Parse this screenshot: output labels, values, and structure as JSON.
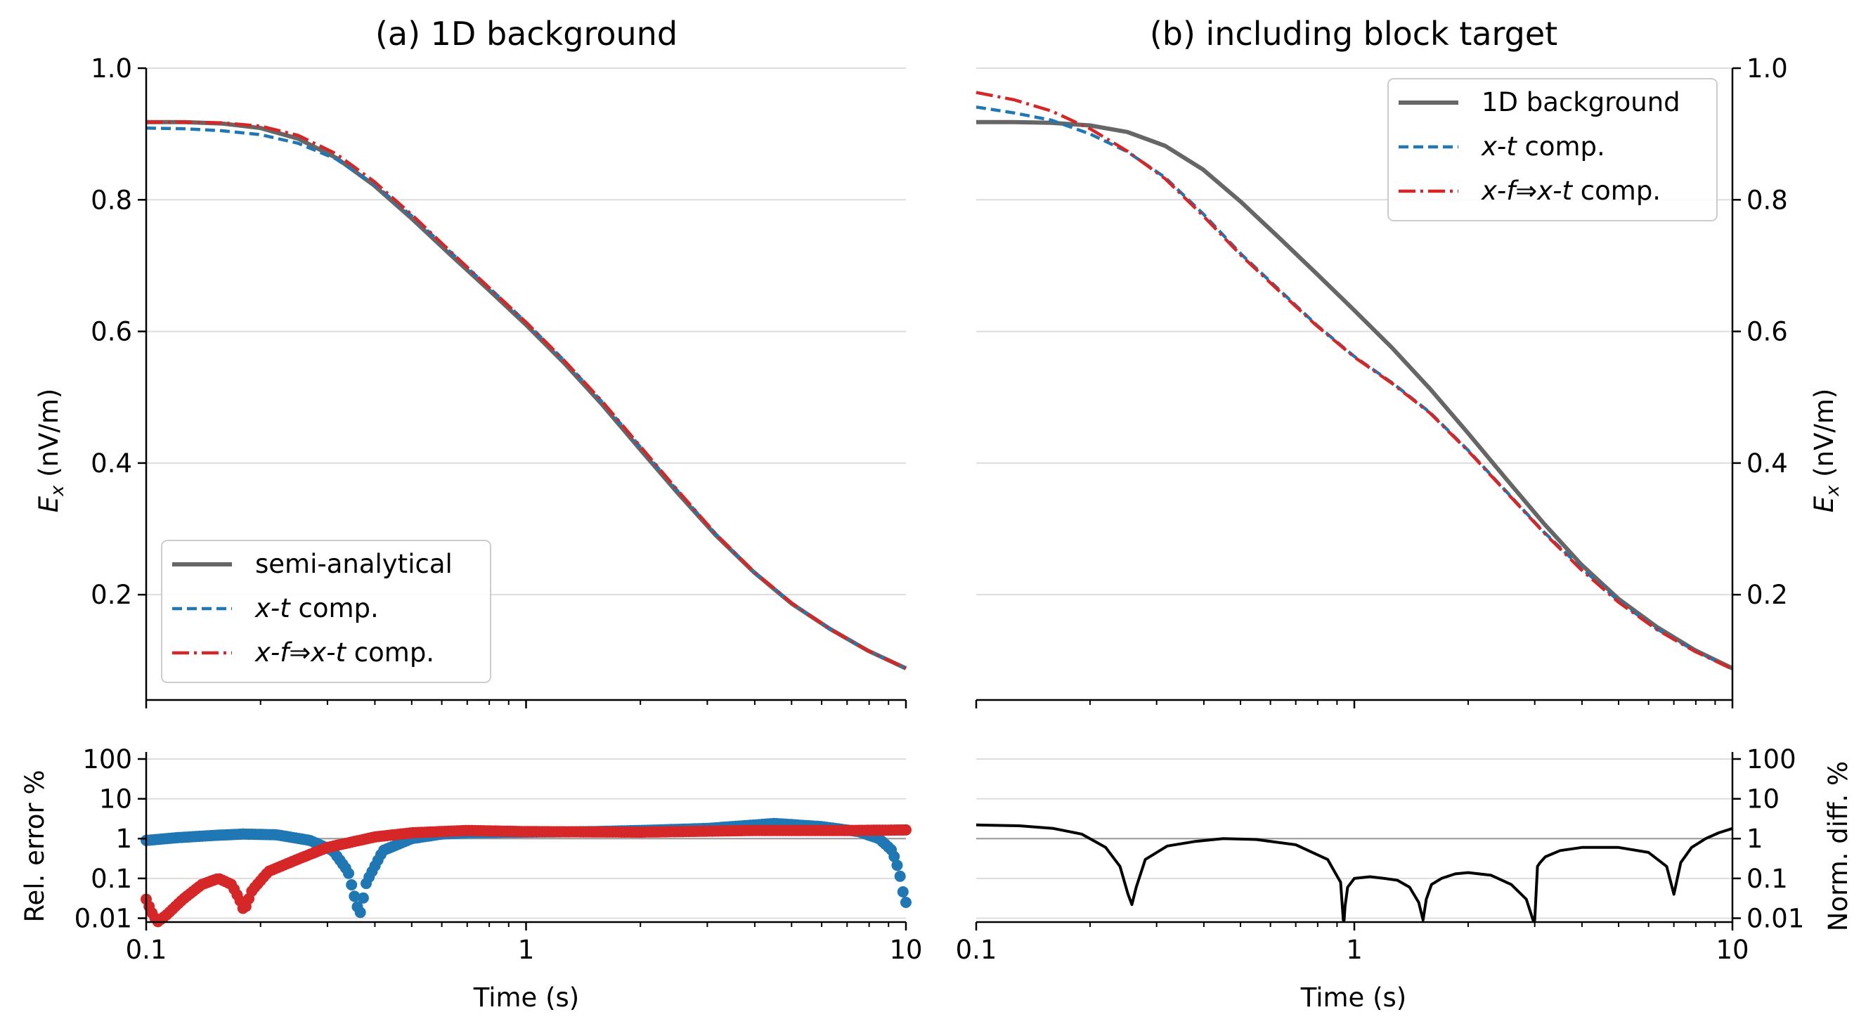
{
  "chart_data": [
    {
      "type": "line",
      "title": "(a) 1D background",
      "ylabel_main": "E",
      "ylabel_sub": "x",
      "ylabel_unit": " (nV/m)",
      "xlabel": "",
      "xscale": "log",
      "xlim": [
        0.1,
        10
      ],
      "ylim": [
        0.04,
        1.0
      ],
      "yticks": [
        0.2,
        0.4,
        0.6,
        0.8,
        1.0
      ],
      "ytick_labels": [
        "0.2",
        "0.4",
        "0.6",
        "0.8",
        "1.0"
      ],
      "grid": "horizontal",
      "legend_placement": "lower-left",
      "x": [
        0.1,
        0.126,
        0.158,
        0.2,
        0.251,
        0.316,
        0.398,
        0.501,
        0.631,
        0.794,
        1.0,
        1.259,
        1.585,
        1.995,
        2.512,
        3.162,
        3.981,
        5.012,
        6.31,
        7.943,
        10.0
      ],
      "series": [
        {
          "name": "semi-analytical",
          "color": "#666666",
          "style": "solid",
          "values": [
            0.918,
            0.918,
            0.916,
            0.909,
            0.893,
            0.864,
            0.822,
            0.771,
            0.717,
            0.664,
            0.61,
            0.552,
            0.489,
            0.421,
            0.354,
            0.29,
            0.234,
            0.186,
            0.148,
            0.115,
            0.088
          ]
        },
        {
          "name_main": "x-t",
          "name_rest": " comp.",
          "color": "#1f77b4",
          "style": "dashed",
          "values": [
            0.909,
            0.908,
            0.905,
            0.899,
            0.886,
            0.862,
            0.824,
            0.775,
            0.721,
            0.668,
            0.614,
            0.556,
            0.493,
            0.425,
            0.357,
            0.292,
            0.235,
            0.187,
            0.148,
            0.115,
            0.088
          ]
        },
        {
          "name_main": "x-f⇒x-t",
          "name_rest": " comp.",
          "color": "#d62728",
          "style": "dashdot",
          "values": [
            0.918,
            0.918,
            0.917,
            0.912,
            0.898,
            0.87,
            0.828,
            0.777,
            0.722,
            0.668,
            0.614,
            0.556,
            0.494,
            0.426,
            0.358,
            0.292,
            0.235,
            0.187,
            0.148,
            0.115,
            0.088
          ]
        }
      ]
    },
    {
      "type": "scatter",
      "ylabel": "Rel. error %",
      "xlabel": "Time (s)",
      "xscale": "log",
      "yscale": "log",
      "xlim": [
        0.1,
        10
      ],
      "ylim": [
        0.008,
        150
      ],
      "xticks": [
        0.1,
        1,
        10
      ],
      "xtick_labels": [
        "0.1",
        "1",
        "10"
      ],
      "yticks": [
        0.01,
        0.1,
        1,
        10,
        100
      ],
      "ytick_labels": [
        "0.01",
        "0.1",
        "1",
        "10",
        "100"
      ],
      "reference_line": 1,
      "grid": "horizontal",
      "series": [
        {
          "name": "x-t comp.",
          "color": "#1f77b4",
          "x": [
            0.1,
            0.12,
            0.15,
            0.18,
            0.22,
            0.27,
            0.31,
            0.34,
            0.355,
            0.365,
            0.38,
            0.42,
            0.5,
            0.6,
            0.7,
            1.0,
            1.5,
            2.0,
            3.0,
            4.0,
            4.5,
            6.0,
            7.5,
            8.5,
            9.2,
            9.6,
            9.8,
            10.0
          ],
          "values": [
            0.9,
            1.05,
            1.2,
            1.3,
            1.25,
            0.9,
            0.5,
            0.15,
            0.03,
            0.012,
            0.08,
            0.5,
            1.0,
            1.3,
            1.4,
            1.45,
            1.5,
            1.6,
            1.8,
            2.2,
            2.4,
            2.0,
            1.5,
            1.0,
            0.5,
            0.15,
            0.05,
            0.025
          ]
        },
        {
          "name": "x-f⇒x-t comp.",
          "color": "#d62728",
          "x": [
            0.1,
            0.103,
            0.107,
            0.113,
            0.125,
            0.14,
            0.155,
            0.168,
            0.176,
            0.181,
            0.19,
            0.21,
            0.25,
            0.3,
            0.4,
            0.5,
            0.7,
            1.0,
            2.0,
            4.0,
            7.0,
            10.0
          ],
          "values": [
            0.03,
            0.015,
            0.008,
            0.012,
            0.03,
            0.07,
            0.1,
            0.07,
            0.03,
            0.015,
            0.05,
            0.15,
            0.3,
            0.6,
            1.1,
            1.4,
            1.6,
            1.5,
            1.45,
            1.6,
            1.6,
            1.65
          ]
        }
      ]
    },
    {
      "type": "line",
      "title": "(b) including block target",
      "ylabel_main": "E",
      "ylabel_sub": "x",
      "ylabel_unit": " (nV/m)",
      "xscale": "log",
      "xlim": [
        0.1,
        10
      ],
      "ylim": [
        0.04,
        1.0
      ],
      "yticks": [
        0.2,
        0.4,
        0.6,
        0.8,
        1.0
      ],
      "ytick_labels": [
        "0.2",
        "0.4",
        "0.6",
        "0.8",
        "1.0"
      ],
      "grid": "horizontal",
      "legend_placement": "top-right",
      "x": [
        0.1,
        0.126,
        0.158,
        0.2,
        0.251,
        0.316,
        0.398,
        0.501,
        0.631,
        0.794,
        1.0,
        1.259,
        1.585,
        1.995,
        2.512,
        3.162,
        3.981,
        5.012,
        6.31,
        7.943,
        10.0
      ],
      "series": [
        {
          "name": "1D background",
          "color": "#666666",
          "style": "solid",
          "values": [
            0.918,
            0.918,
            0.917,
            0.913,
            0.903,
            0.882,
            0.846,
            0.797,
            0.743,
            0.688,
            0.632,
            0.575,
            0.513,
            0.446,
            0.377,
            0.309,
            0.246,
            0.193,
            0.151,
            0.116,
            0.088
          ]
        },
        {
          "name_main": "x-t",
          "name_rest": " comp.",
          "color": "#1f77b4",
          "style": "dashed",
          "values": [
            0.941,
            0.932,
            0.921,
            0.9,
            0.873,
            0.834,
            0.779,
            0.718,
            0.664,
            0.61,
            0.562,
            0.522,
            0.477,
            0.42,
            0.358,
            0.296,
            0.241,
            0.19,
            0.148,
            0.115,
            0.087
          ]
        },
        {
          "name_main": "x-f⇒x-t",
          "name_rest": " comp.",
          "color": "#d62728",
          "style": "dashdot",
          "values": [
            0.963,
            0.952,
            0.935,
            0.908,
            0.874,
            0.832,
            0.776,
            0.716,
            0.662,
            0.609,
            0.561,
            0.521,
            0.476,
            0.419,
            0.357,
            0.295,
            0.238,
            0.188,
            0.147,
            0.114,
            0.087
          ]
        }
      ]
    },
    {
      "type": "line",
      "ylabel": "Norm. diff. %",
      "xlabel": "Time (s)",
      "xscale": "log",
      "yscale": "log",
      "xlim": [
        0.1,
        10
      ],
      "ylim": [
        0.008,
        150
      ],
      "xticks": [
        0.1,
        1,
        10
      ],
      "xtick_labels": [
        "0.1",
        "1",
        "10"
      ],
      "yticks": [
        0.01,
        0.1,
        1,
        10,
        100
      ],
      "ytick_labels": [
        "0.01",
        "0.1",
        "1",
        "10",
        "100"
      ],
      "reference_line": 1,
      "grid": "horizontal",
      "series": [
        {
          "name": "",
          "color": "#000000",
          "style": "solid",
          "x": [
            0.1,
            0.13,
            0.16,
            0.19,
            0.22,
            0.24,
            0.252,
            0.258,
            0.265,
            0.28,
            0.32,
            0.38,
            0.45,
            0.55,
            0.7,
            0.85,
            0.92,
            0.935,
            0.94,
            0.945,
            0.96,
            1.0,
            1.1,
            1.2,
            1.3,
            1.4,
            1.48,
            1.52,
            1.55,
            1.6,
            1.7,
            1.85,
            2.0,
            2.3,
            2.6,
            2.85,
            2.97,
            3.0,
            3.05,
            3.1,
            3.2,
            3.5,
            4.0,
            5.0,
            6.0,
            6.7,
            7.0,
            7.3,
            7.8,
            8.5,
            9.2,
            10.0
          ],
          "values": [
            2.2,
            2.1,
            1.8,
            1.3,
            0.6,
            0.2,
            0.04,
            0.022,
            0.06,
            0.3,
            0.65,
            0.85,
            1.0,
            0.95,
            0.7,
            0.3,
            0.08,
            0.009,
            0.009,
            0.02,
            0.06,
            0.1,
            0.11,
            0.1,
            0.09,
            0.06,
            0.025,
            0.009,
            0.03,
            0.07,
            0.1,
            0.13,
            0.14,
            0.12,
            0.07,
            0.03,
            0.009,
            0.009,
            0.2,
            0.25,
            0.35,
            0.5,
            0.6,
            0.6,
            0.45,
            0.2,
            0.04,
            0.25,
            0.6,
            1.0,
            1.4,
            1.8
          ]
        }
      ]
    }
  ]
}
